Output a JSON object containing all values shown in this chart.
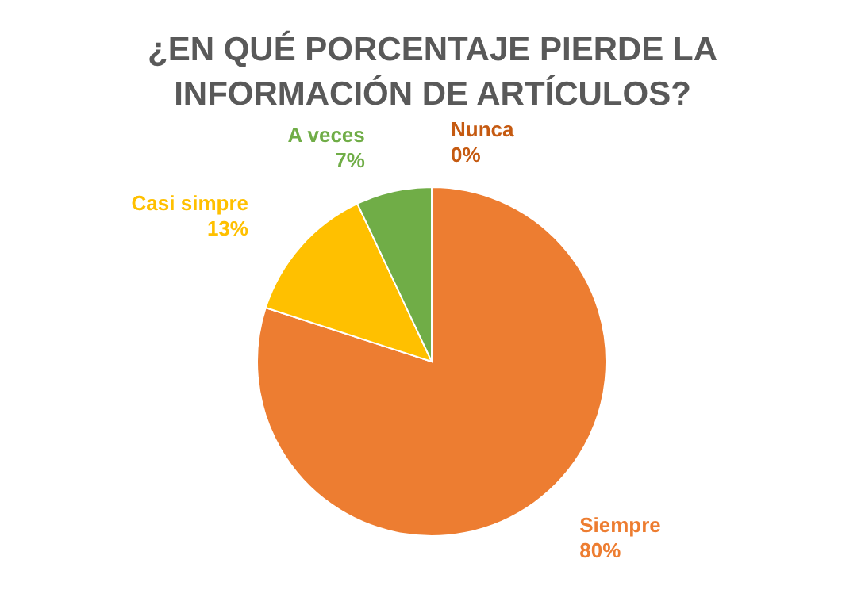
{
  "chart_data": {
    "type": "pie",
    "title": "¿EN QUÉ PORCENTAJE PIERDE LA INFORMACIÓN DE ARTÍCULOS?",
    "categories": [
      "Nunca",
      "Siempre",
      "Casi simpre",
      "A veces"
    ],
    "values": [
      0,
      80,
      13,
      7
    ],
    "value_labels": [
      "0%",
      "80%",
      "13%",
      "7%"
    ],
    "colors": [
      "#c55a11",
      "#ed7d31",
      "#ffc000",
      "#70ad47"
    ]
  }
}
